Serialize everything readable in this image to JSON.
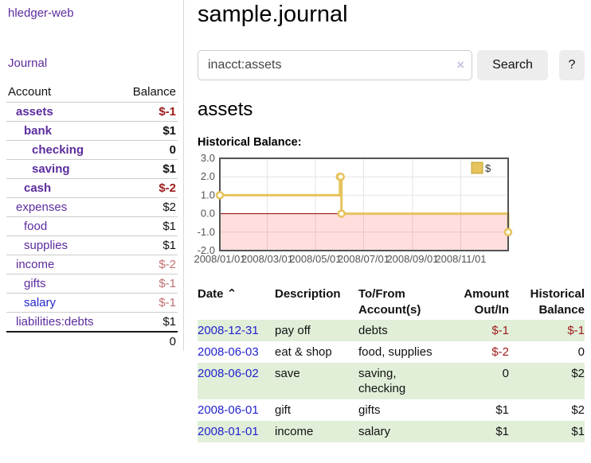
{
  "sidebar": {
    "app_title": "hledger-web",
    "journal_link": "Journal",
    "accounts": {
      "header_account": "Account",
      "header_balance": "Balance",
      "rows": [
        {
          "name": "assets",
          "balance": "$-1",
          "level": 1,
          "bold": true,
          "name_color": "purple",
          "balance_tone": "neg-strong"
        },
        {
          "name": "bank",
          "balance": "$1",
          "level": 2,
          "bold": true,
          "name_color": "purple",
          "balance_tone": ""
        },
        {
          "name": "checking",
          "balance": "0",
          "level": 3,
          "bold": true,
          "name_color": "purple",
          "balance_tone": ""
        },
        {
          "name": "saving",
          "balance": "$1",
          "level": 3,
          "bold": true,
          "name_color": "purple",
          "balance_tone": ""
        },
        {
          "name": "cash",
          "balance": "$-2",
          "level": 2,
          "bold": true,
          "name_color": "purple",
          "balance_tone": "neg-strong"
        },
        {
          "name": "expenses",
          "balance": "$2",
          "level": 1,
          "bold": false,
          "name_color": "purple",
          "balance_tone": ""
        },
        {
          "name": "food",
          "balance": "$1",
          "level": 2,
          "bold": false,
          "name_color": "purple",
          "balance_tone": ""
        },
        {
          "name": "supplies",
          "balance": "$1",
          "level": 2,
          "bold": false,
          "name_color": "purple",
          "balance_tone": ""
        },
        {
          "name": "income",
          "balance": "$-2",
          "level": 1,
          "bold": false,
          "name_color": "purple",
          "balance_tone": "neg-soft"
        },
        {
          "name": "gifts",
          "balance": "$-1",
          "level": 2,
          "bold": false,
          "name_color": "purple",
          "balance_tone": "neg-soft"
        },
        {
          "name": "salary",
          "balance": "$-1",
          "level": 2,
          "bold": false,
          "name_color": "blue",
          "balance_tone": "neg-soft"
        },
        {
          "name": "liabilities:debts",
          "balance": "$1",
          "level": 1,
          "bold": false,
          "name_color": "purple",
          "balance_tone": ""
        }
      ],
      "total": "0"
    }
  },
  "header": {
    "title": "sample.journal"
  },
  "search": {
    "value": "inacct:assets",
    "clear_icon": "×",
    "search_button": "Search",
    "help_button": "?"
  },
  "account_page": {
    "heading": "assets",
    "chart_title": "Historical Balance:"
  },
  "chart_data": {
    "type": "line",
    "title": "Historical Balance:",
    "step": true,
    "series": [
      {
        "name": "$",
        "color": "#E6C35C",
        "points": [
          [
            "2008/01/01",
            1.0
          ],
          [
            "2008/06/01",
            2.0
          ],
          [
            "2008/06/02",
            2.0
          ],
          [
            "2008/06/03",
            0.0
          ],
          [
            "2008/12/31",
            -1.0
          ]
        ]
      }
    ],
    "x_range": [
      "2008/01/01",
      "2008/12/31"
    ],
    "ylim": [
      -2.0,
      3.0
    ],
    "y_ticks": [
      3.0,
      2.0,
      1.0,
      0.0,
      -1.0,
      -2.0
    ],
    "x_tick_labels": [
      "2008/01/01",
      "2008/03/01",
      "2008/05/01",
      "2008/07/01",
      "2008/09/01",
      "2008/11/01"
    ],
    "grid": true,
    "grid_color": "#e4e4e4",
    "border_color": "#545454",
    "tick_color": "#545454",
    "negative_fill": "rgba(255,0,0,0.13)",
    "zero_line_color": "#8b0000",
    "marker_fill": "#fffdf0",
    "legend_swatch_border": "#bfa030",
    "legend": {
      "label": "$",
      "position": "top-right"
    }
  },
  "register": {
    "headers": {
      "date": "Date",
      "description": "Description",
      "accounts": "To/From Account(s)",
      "amount": "Amount Out/In",
      "balance": "Historical Balance"
    },
    "sort_icon": "⌃",
    "rows": [
      {
        "date": "2008-12-31",
        "description": "pay off",
        "accounts": "debts",
        "amount": "$-1",
        "amount_tone": "neg-strong",
        "balance": "$-1",
        "balance_tone": "neg-strong",
        "shaded": true
      },
      {
        "date": "2008-06-03",
        "description": "eat & shop",
        "accounts": "food, supplies",
        "amount": "$-2",
        "amount_tone": "neg-strong",
        "balance": "0",
        "balance_tone": "",
        "shaded": false
      },
      {
        "date": "2008-06-02",
        "description": "save",
        "accounts": "saving, checking",
        "amount": "0",
        "amount_tone": "",
        "balance": "$2",
        "balance_tone": "",
        "shaded": true
      },
      {
        "date": "2008-06-01",
        "description": "gift",
        "accounts": "gifts",
        "amount": "$1",
        "amount_tone": "",
        "balance": "$2",
        "balance_tone": "",
        "shaded": false
      },
      {
        "date": "2008-01-01",
        "description": "income",
        "accounts": "salary",
        "amount": "$1",
        "amount_tone": "",
        "balance": "$1",
        "balance_tone": "",
        "shaded": true
      }
    ]
  },
  "colors": {
    "link_purple": "#5C2C9D",
    "link_blue": "#2323CD",
    "negative_strong": "#9E1A1A",
    "negative_soft": "#C17070",
    "row_stripe_green": "#E1EFD9",
    "chart_gold": "#E6C35C",
    "chart_negative_area": "#fadada"
  }
}
